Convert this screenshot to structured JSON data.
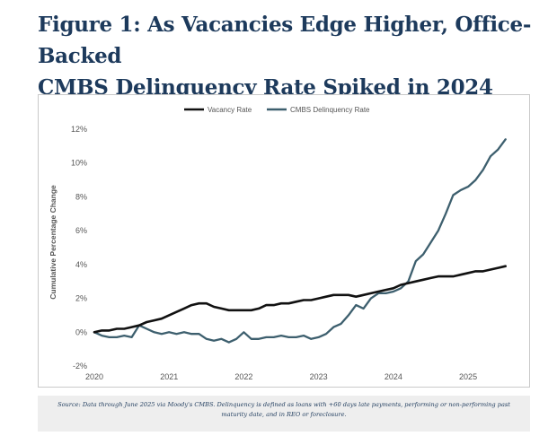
{
  "header": {
    "title_line1": "Figure 1: As Vacancies Edge Higher, Office-Backed",
    "title_line2": "CMBS Delinquency Rate Spiked in 2024"
  },
  "footnote": {
    "text": "Source: Data through June 2025 via Moody's CMBS. Delinquency is defined as loans with +60 days late payments, performing or non-performing past maturity date, and in REO or foreclosure."
  },
  "colors": {
    "vacancy": "#111111",
    "delinquency": "#3d5f6e",
    "title": "#1d3a5c"
  },
  "chart_data": {
    "type": "line",
    "title": "",
    "xlabel": "",
    "ylabel": "Cumulative Percentage Change",
    "xlim": [
      2020.0,
      2025.6
    ],
    "ylim": [
      -2,
      12
    ],
    "x_ticks": [
      2020,
      2021,
      2022,
      2023,
      2024,
      2025
    ],
    "x_tick_labels": [
      "2020",
      "2021",
      "2022",
      "2023",
      "2024",
      "2025"
    ],
    "y_ticks": [
      -2,
      0,
      2,
      4,
      6,
      8,
      10,
      12
    ],
    "y_tick_labels": [
      "-2%",
      "0%",
      "2%",
      "4%",
      "6%",
      "8%",
      "10%",
      "12%"
    ],
    "grid": false,
    "legend_position": "top-center",
    "series": [
      {
        "name": "Vacancy Rate",
        "color": "#111111",
        "x": [
          2020.0,
          2020.1,
          2020.2,
          2020.3,
          2020.4,
          2020.5,
          2020.6,
          2020.7,
          2020.8,
          2020.9,
          2021.0,
          2021.1,
          2021.2,
          2021.3,
          2021.4,
          2021.5,
          2021.6,
          2021.7,
          2021.8,
          2021.9,
          2022.0,
          2022.1,
          2022.2,
          2022.3,
          2022.4,
          2022.5,
          2022.6,
          2022.7,
          2022.8,
          2022.9,
          2023.0,
          2023.1,
          2023.2,
          2023.3,
          2023.4,
          2023.5,
          2023.6,
          2023.7,
          2023.8,
          2023.9,
          2024.0,
          2024.1,
          2024.2,
          2024.3,
          2024.4,
          2024.5,
          2024.6,
          2024.7,
          2024.8,
          2024.9,
          2025.0,
          2025.1,
          2025.2,
          2025.3,
          2025.4,
          2025.5
        ],
        "y": [
          0.0,
          0.1,
          0.1,
          0.2,
          0.2,
          0.3,
          0.4,
          0.6,
          0.7,
          0.8,
          1.0,
          1.2,
          1.4,
          1.6,
          1.7,
          1.7,
          1.5,
          1.4,
          1.3,
          1.3,
          1.3,
          1.3,
          1.4,
          1.6,
          1.6,
          1.7,
          1.7,
          1.8,
          1.9,
          1.9,
          2.0,
          2.1,
          2.2,
          2.2,
          2.2,
          2.1,
          2.2,
          2.3,
          2.4,
          2.5,
          2.6,
          2.8,
          2.9,
          3.0,
          3.1,
          3.2,
          3.3,
          3.3,
          3.3,
          3.4,
          3.5,
          3.6,
          3.6,
          3.7,
          3.8,
          3.9
        ]
      },
      {
        "name": "CMBS Delinquency Rate",
        "color": "#3d5f6e",
        "x": [
          2020.0,
          2020.1,
          2020.2,
          2020.3,
          2020.4,
          2020.5,
          2020.6,
          2020.7,
          2020.8,
          2020.9,
          2021.0,
          2021.1,
          2021.2,
          2021.3,
          2021.4,
          2021.5,
          2021.6,
          2021.7,
          2021.8,
          2021.9,
          2022.0,
          2022.1,
          2022.2,
          2022.3,
          2022.4,
          2022.5,
          2022.6,
          2022.7,
          2022.8,
          2022.9,
          2023.0,
          2023.1,
          2023.2,
          2023.3,
          2023.4,
          2023.5,
          2023.6,
          2023.7,
          2023.8,
          2023.9,
          2024.0,
          2024.1,
          2024.2,
          2024.3,
          2024.4,
          2024.5,
          2024.6,
          2024.7,
          2024.8,
          2024.9,
          2025.0,
          2025.1,
          2025.2,
          2025.3,
          2025.4,
          2025.5
        ],
        "y": [
          0.0,
          -0.2,
          -0.3,
          -0.3,
          -0.2,
          -0.3,
          0.4,
          0.2,
          0.0,
          -0.1,
          0.0,
          -0.1,
          0.0,
          -0.1,
          -0.1,
          -0.4,
          -0.5,
          -0.4,
          -0.6,
          -0.4,
          0.0,
          -0.4,
          -0.4,
          -0.3,
          -0.3,
          -0.2,
          -0.3,
          -0.3,
          -0.2,
          -0.4,
          -0.3,
          -0.1,
          0.3,
          0.5,
          1.0,
          1.6,
          1.4,
          2.0,
          2.3,
          2.3,
          2.4,
          2.6,
          3.0,
          4.2,
          4.6,
          5.3,
          6.0,
          7.0,
          8.1,
          8.4,
          8.6,
          9.0,
          9.6,
          10.4,
          10.8,
          11.4
        ]
      }
    ]
  }
}
